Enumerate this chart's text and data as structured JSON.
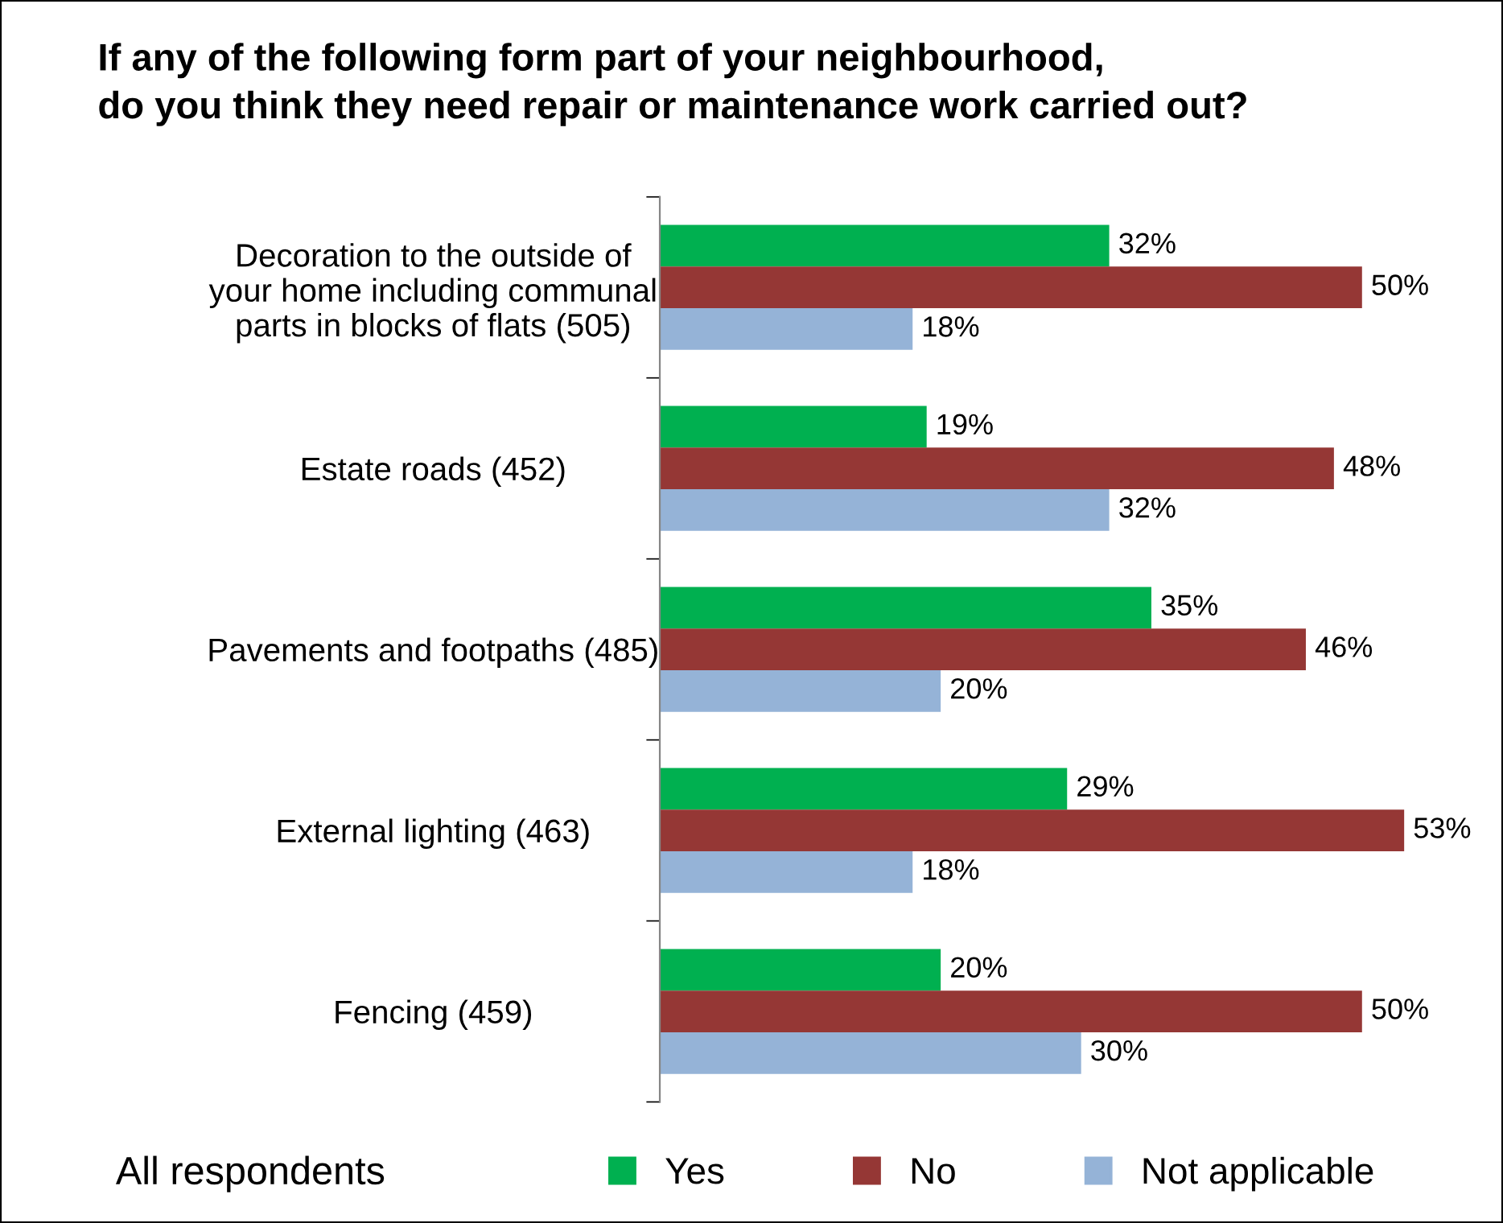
{
  "chart_data": {
    "type": "bar",
    "orientation": "horizontal",
    "title": "If any of the following form part of your neighbourhood,\ndo you think they need repair or maintenance work carried out?",
    "categories": [
      "Decoration to the outside of\nyour home including communal\nparts in blocks of flats (505)",
      "Estate roads (452)",
      "Pavements and footpaths (485)",
      "External lighting (463)",
      "Fencing (459)"
    ],
    "series": [
      {
        "name": "Yes",
        "color": "#00b050",
        "values": [
          32,
          19,
          35,
          29,
          20
        ],
        "value_labels": [
          "32%",
          "19%",
          "35%",
          "29%",
          "20%"
        ]
      },
      {
        "name": "No",
        "color": "#953735",
        "values": [
          50,
          48,
          46,
          53,
          50
        ],
        "value_labels": [
          "50%",
          "48%",
          "46%",
          "53%",
          "50%"
        ]
      },
      {
        "name": "Not applicable",
        "color": "#95b3d7",
        "values": [
          18,
          32,
          20,
          18,
          30
        ],
        "value_labels": [
          "18%",
          "32%",
          "20%",
          "18%",
          "30%"
        ]
      }
    ],
    "annotations": [
      "All respondents"
    ],
    "legend": "bottom",
    "grid": false
  }
}
